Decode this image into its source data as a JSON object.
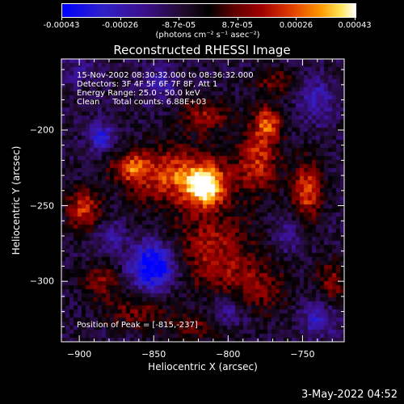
{
  "colorbar": {
    "labels": [
      "-0.00043",
      "-0.00026",
      "-8.7e-05",
      "8.7e-05",
      "0.00026",
      "0.00043"
    ],
    "units_text": "(photons cm⁻² s⁻¹ asec⁻²)"
  },
  "chart_data": {
    "type": "heatmap",
    "title": "Reconstructed RHESSI Image",
    "xlabel": "Heliocentric X (arcsec)",
    "ylabel": "Heliocentric Y (arcsec)",
    "xlim": [
      -912,
      -722
    ],
    "ylim": [
      -340,
      -153
    ],
    "x_ticks": [
      -900,
      -850,
      -800,
      -750
    ],
    "y_ticks": [
      -200,
      -250,
      -300
    ],
    "color_range": [
      -0.00043,
      0.00043
    ],
    "grid": false,
    "peak_position": [
      -815,
      -237
    ],
    "info_lines": [
      "15-Nov-2002 08:30:32.000 to 08:36:32.000",
      "Detectors: 3F 4F 5F 6F 7F 8F, Att 1",
      "Energy Range: 25.0 - 50.0 keV",
      "Clean     Total counts: 6.88E+03"
    ],
    "peak_text": "Position of Peak = [-815,-237]",
    "sources": [
      {
        "x": -815,
        "y": -237,
        "amp": 1.0,
        "sx": 9,
        "sy": 9
      },
      {
        "x": -835,
        "y": -230,
        "amp": 0.75,
        "sx": 22,
        "sy": 14
      },
      {
        "x": -865,
        "y": -225,
        "amp": 0.6,
        "sx": 9,
        "sy": 7
      },
      {
        "x": -815,
        "y": -190,
        "amp": 0.5,
        "sx": 12,
        "sy": 8
      },
      {
        "x": -780,
        "y": -220,
        "amp": 0.65,
        "sx": 10,
        "sy": 15
      },
      {
        "x": -773,
        "y": -195,
        "amp": 0.7,
        "sx": 7,
        "sy": 8
      },
      {
        "x": -747,
        "y": -240,
        "amp": 0.75,
        "sx": 7,
        "sy": 14
      },
      {
        "x": -897,
        "y": -253,
        "amp": 0.7,
        "sx": 8,
        "sy": 10
      },
      {
        "x": -885,
        "y": -300,
        "amp": 0.45,
        "sx": 10,
        "sy": 8
      },
      {
        "x": -810,
        "y": -280,
        "amp": 0.55,
        "sx": 20,
        "sy": 20
      },
      {
        "x": -862,
        "y": -320,
        "amp": 0.4,
        "sx": 15,
        "sy": 8
      },
      {
        "x": -780,
        "y": -305,
        "amp": 0.4,
        "sx": 15,
        "sy": 12
      },
      {
        "x": -730,
        "y": -300,
        "amp": 0.45,
        "sx": 8,
        "sy": 10
      },
      {
        "x": -770,
        "y": -168,
        "amp": 0.4,
        "sx": 10,
        "sy": 6
      },
      {
        "x": -820,
        "y": -330,
        "amp": 0.35,
        "sx": 15,
        "sy": 6
      },
      {
        "x": -900,
        "y": -160,
        "amp": -0.25,
        "sx": 8,
        "sy": 6
      },
      {
        "x": -885,
        "y": -205,
        "amp": -0.6,
        "sx": 6,
        "sy": 6
      },
      {
        "x": -850,
        "y": -290,
        "amp": -0.95,
        "sx": 11,
        "sy": 11
      },
      {
        "x": -880,
        "y": -270,
        "amp": -0.35,
        "sx": 7,
        "sy": 7
      },
      {
        "x": -845,
        "y": -170,
        "amp": -0.35,
        "sx": 8,
        "sy": 8
      },
      {
        "x": -740,
        "y": -180,
        "amp": -0.4,
        "sx": 8,
        "sy": 10
      },
      {
        "x": -740,
        "y": -325,
        "amp": -0.45,
        "sx": 8,
        "sy": 8
      },
      {
        "x": -800,
        "y": -320,
        "amp": -0.4,
        "sx": 10,
        "sy": 8
      },
      {
        "x": -760,
        "y": -270,
        "amp": -0.35,
        "sx": 6,
        "sy": 8
      }
    ],
    "background_level": -0.2
  },
  "timestamp": "3-May-2022 04:52"
}
